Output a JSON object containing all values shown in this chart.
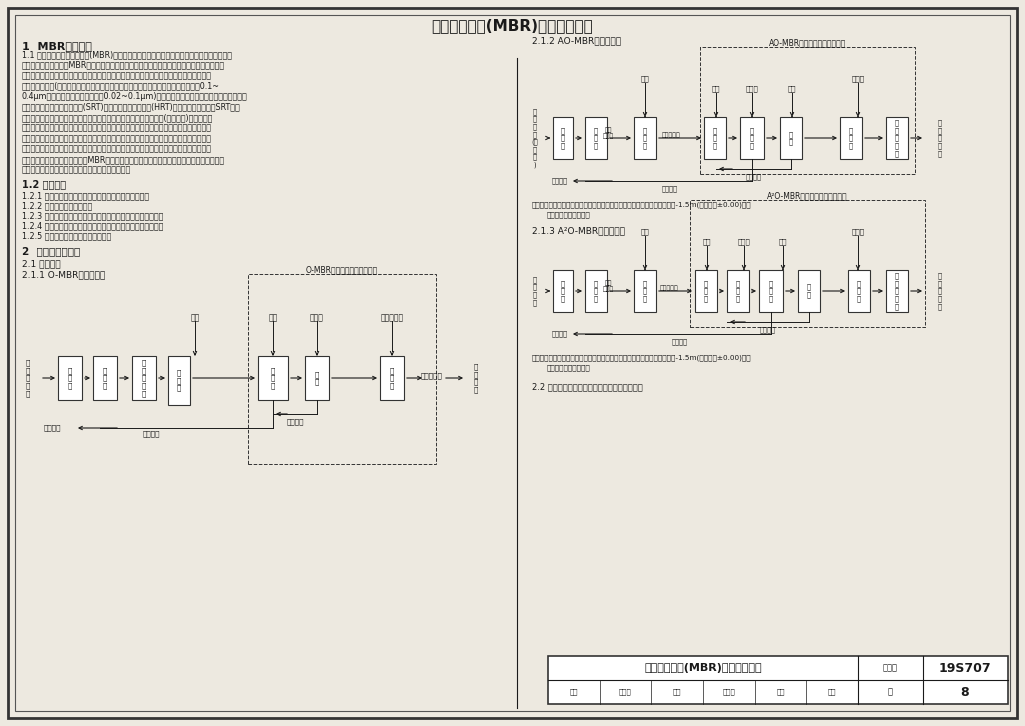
{
  "title": "膜生物反应器(MBR)工艺流程说明",
  "bg_color": "#ede9e0",
  "section1_title": "1  MBR工艺介绍",
  "para11": "1.1 工艺原理。膜生物反应器(MBR)是一种将污水生物处理工艺和膜分离技术有机结合的新型高效污水处理技术。在MBR系统中，污水中的有机物、氮、磷等各类污染物仍然主要通过微生物的生物化学作用加以去除或转化，但与常规生物处理工艺不同的是，以具有高精度过滤功能的膜分离设备(主要包括微滤膜组件和超滤膜组件两大类。微滤膜组件的过滤精度为0.1~0.4μm，超滤膜组件的过滤精度为0.02~0.1μm)取代了沉淀池和常规过滤设备，其高效分离作用使泥水彻底分离。污泥龄(SRT)可以不受水力停留时间(HRT)的影响而单独调控，SRT大幅延长，生物反应池中活性污泥浓度大幅提高，世代周期较长的特殊菌(如硝化菌)得以富集，因此微生物活性以及生化反应速率较传统生物处理工艺显著提高，对污染物有更好的去除效果，对污水水质变量变化的适应能力也更强。微生物与水的分离不再通过重力沉淀，而是在压力的驱动下，使水和部分小分子物质通过膜，微生物和大分子物质则被膜截留在生物反应池内，持续参与生物化学反应。MBR工艺不但获得了优良稳定的出水水质，而且具有高污泥浓度、低污泥产量以及抗冲击负荷能力强等显著特点。",
  "section12_title": "1.2 工艺特点",
  "items12": [
    "1.2.1 出水悬浮物接近于零，水质优良稳定，安全性高。",
    "1.2.2 工艺流程短，占地少。",
    "1.2.3 生物反应池内污泥浓度高，污泥龄长，剩余污泥产量低。",
    "1.2.4 抗冲击负荷能力强，对进水水质水量变化的适应能力强。",
    "1.2.5 工艺调控简单，自动化程度高。"
  ],
  "section2_title": "2  工艺流程及参数",
  "section21_title": "2.1 工艺流程",
  "section211_title": "2.1.1 O-MBR工艺流程图",
  "section212_title": "2.1.2 AO-MBR工艺流程图",
  "section213_title": "2.1.3 A²O-MBR工艺流程图",
  "section22": "2.2 主要工艺参数见本图集相应设备选用说明。",
  "note": "注：格栅渠、集水池和一次提升泵根据项目情况选用，如果进水标高不低于-1.5m(地面标高±0.00)，进水可直接进入调节池。",
  "ombr_box_title": "O-MBR生活排水处理成套设备",
  "aombr_box_title": "AO-MBR生活排水处理成套设备",
  "a2ombr_box_title": "A²O-MBR生活排水处理成套设备",
  "footer_title": "膜生物反应器(MBR)工艺流程说明",
  "footer_atlas_label": "图集号",
  "footer_atlas_num": "19S707",
  "footer_page_label": "页",
  "footer_page_num": "8",
  "footer_items": [
    "审核",
    "王冠军",
    "校对",
    "侯中华",
    "设计",
    "李勇"
  ],
  "text_color": "#1a1a1a",
  "line_color": "#1a1a1a"
}
